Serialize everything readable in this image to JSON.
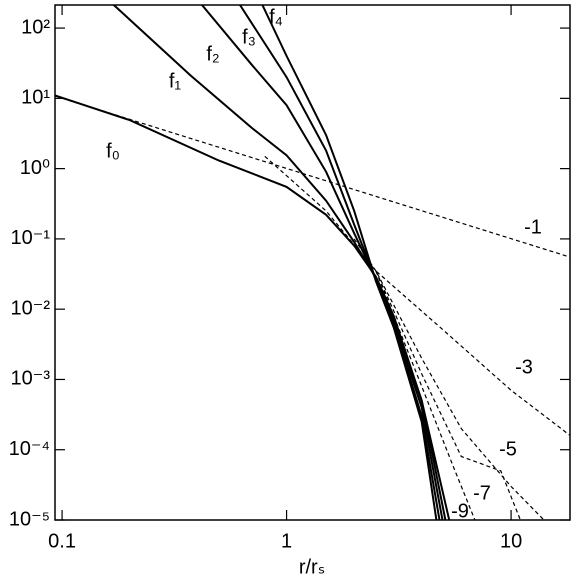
{
  "chart_data": {
    "type": "line",
    "xlabel": "r/rₛ",
    "log_x": true,
    "log_y": true,
    "xlim": [
      0.093,
      18.3
    ],
    "ylim": [
      1e-05,
      213
    ],
    "xticks": [
      0.1,
      1,
      10
    ],
    "yticks": [
      {
        "value": 100,
        "label": "10²"
      },
      {
        "value": 10,
        "label": "10¹"
      },
      {
        "value": 1,
        "label": "10⁰"
      },
      {
        "value": 0.1,
        "label": "10⁻¹"
      },
      {
        "value": 0.01,
        "label": "10⁻²"
      },
      {
        "value": 0.001,
        "label": "10⁻³"
      },
      {
        "value": 0.0001,
        "label": "10⁻⁴"
      },
      {
        "value": 1e-05,
        "label": "10⁻⁵"
      }
    ],
    "series": [
      {
        "name": "f₀",
        "color": "#000000",
        "dashed": false,
        "x": [
          0.093,
          0.2,
          0.5,
          1,
          1.5,
          2,
          2.5,
          3,
          4,
          5.3
        ],
        "values": [
          11,
          4.9,
          1.3,
          0.55,
          0.22,
          0.08,
          0.029,
          0.008,
          0.0005,
          1e-05
        ]
      },
      {
        "name": "f₁",
        "color": "#000000",
        "dashed": false,
        "x": [
          0.17,
          0.375,
          0.7,
          1,
          1.5,
          2,
          2.5,
          3,
          4,
          5.1
        ],
        "values": [
          213,
          21,
          3.8,
          1.55,
          0.35,
          0.09,
          0.028,
          0.007,
          0.0005,
          1e-05
        ]
      },
      {
        "name": "f₂",
        "color": "#000000",
        "dashed": false,
        "x": [
          0.42,
          0.7,
          1,
          1.5,
          2,
          2.5,
          3,
          4,
          4.95
        ],
        "values": [
          213,
          30,
          8,
          0.9,
          0.12,
          0.027,
          0.0065,
          0.0004,
          1e-05
        ]
      },
      {
        "name": "f₃",
        "color": "#000000",
        "dashed": false,
        "x": [
          0.62,
          1,
          1.5,
          2,
          2.5,
          3,
          4,
          4.8
        ],
        "values": [
          213,
          20,
          1.8,
          0.16,
          0.026,
          0.006,
          0.0003,
          1e-05
        ]
      },
      {
        "name": "f₄",
        "color": "#000000",
        "dashed": false,
        "x": [
          0.78,
          1,
          1.5,
          2,
          2.5,
          3,
          4,
          4.65
        ],
        "values": [
          213,
          40,
          3,
          0.25,
          0.025,
          0.0055,
          0.00025,
          1e-05
        ]
      },
      {
        "name": "-1",
        "color": "#000000",
        "dashed": true,
        "x": [
          0.093,
          18.3
        ],
        "values": [
          10.8,
          0.055
        ]
      },
      {
        "name": "-3",
        "color": "#000000",
        "dashed": true,
        "x": [
          0.8,
          1.5,
          2.5,
          5,
          10,
          18.3
        ],
        "values": [
          1.5,
          0.25,
          0.035,
          0.005,
          0.0007,
          0.00016
        ]
      },
      {
        "name": "-5",
        "color": "#000000",
        "dashed": true,
        "x": [
          2,
          2.5,
          4,
          6,
          10,
          14
        ],
        "values": [
          0.1,
          0.035,
          0.002,
          0.0002,
          3e-05,
          1e-05
        ]
      },
      {
        "name": "-7",
        "color": "#000000",
        "dashed": true,
        "x": [
          2.5,
          4,
          6,
          9,
          11
        ],
        "values": [
          0.035,
          0.0012,
          8e-05,
          5e-05,
          1e-05
        ]
      },
      {
        "name": "-9",
        "color": "#000000",
        "dashed": true,
        "x": [
          2.5,
          4,
          5.5,
          6.9
        ],
        "values": [
          0.035,
          0.0008,
          6e-05,
          1e-05
        ]
      }
    ]
  }
}
